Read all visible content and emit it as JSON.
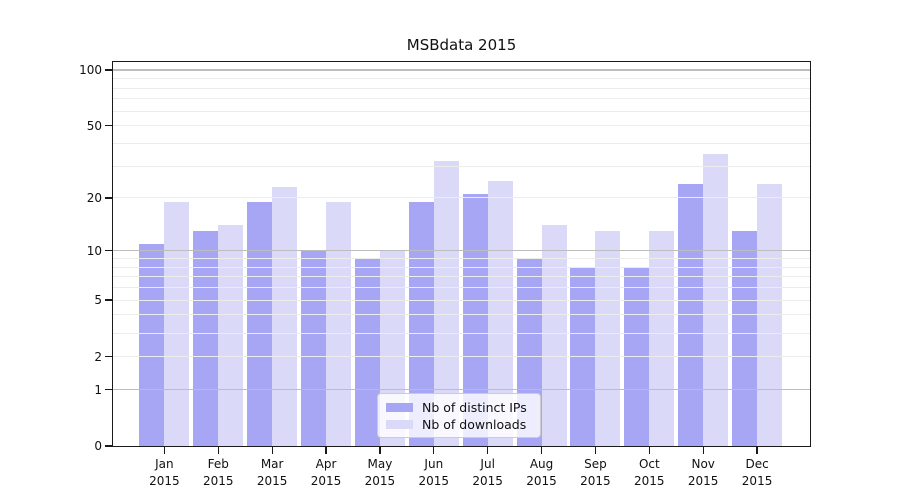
{
  "chart_data": {
    "type": "bar",
    "title": "MSBdata 2015",
    "categories": [
      "Jan 2015",
      "Feb 2015",
      "Mar 2015",
      "Apr 2015",
      "May 2015",
      "Jun 2015",
      "Jul 2015",
      "Aug 2015",
      "Sep 2015",
      "Oct 2015",
      "Nov 2015",
      "Dec 2015"
    ],
    "series": [
      {
        "name": "Nb of distinct IPs",
        "color": "#a6a6f5",
        "values": [
          11,
          13,
          19,
          10,
          9,
          19,
          21,
          9,
          8,
          8,
          24,
          13
        ]
      },
      {
        "name": "Nb of downloads",
        "color": "#dadaf8",
        "values": [
          19,
          14,
          23,
          19,
          10,
          32,
          25,
          14,
          13,
          13,
          35,
          24
        ]
      }
    ],
    "xlabel": "",
    "ylabel": "",
    "yscale": "log10(value+1)",
    "ylim": [
      0,
      113
    ],
    "y_tick_labels": [
      100,
      50,
      20,
      10,
      5,
      2,
      1,
      0
    ],
    "y_grid_major": [
      1,
      10,
      100
    ],
    "y_grid_minor": [
      2,
      3,
      4,
      5,
      6,
      7,
      8,
      9,
      20,
      30,
      40,
      50,
      60,
      70,
      80,
      90
    ],
    "grid": true,
    "legend_position": "lower center"
  },
  "colors": {
    "grid_major": "#bdbdbd",
    "grid_minor": "#ececec",
    "spine": "#1a1a1a",
    "background": "#ffffff"
  }
}
